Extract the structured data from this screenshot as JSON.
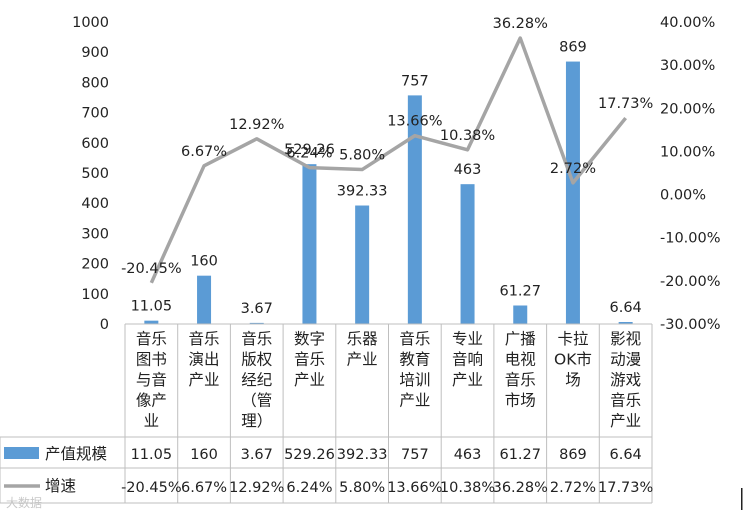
{
  "chart_data": {
    "type": "bar",
    "categories": [
      "音乐\n图书\n与音\n像产\n业",
      "音乐\n演出\n产业",
      "音乐\n版权\n经纪\n（管\n理）",
      "数字\n音乐\n产业",
      "乐器\n产业",
      "音乐\n教育\n培训\n产业",
      "专业\n音响\n产业",
      "广播\n电视\n音乐\n市场",
      "卡拉\nOK市\n场",
      "影视\n动漫\n游戏\n音乐\n产业"
    ],
    "series": [
      {
        "name": "产值规模",
        "kind": "bar",
        "axis": "left",
        "color": "#5b9bd5",
        "values": [
          11.05,
          160,
          3.67,
          529.26,
          392.33,
          757,
          463,
          61.27,
          869,
          6.64
        ],
        "labels": [
          "11.05",
          "160",
          "3.67",
          "529.26",
          "392.33",
          "757",
          "463",
          "61.27",
          "869",
          "6.64"
        ]
      },
      {
        "name": "增速",
        "kind": "line",
        "axis": "right",
        "color": "#a5a5a5",
        "values": [
          -20.45,
          6.67,
          12.92,
          6.24,
          5.8,
          13.66,
          10.38,
          36.28,
          2.72,
          17.73
        ],
        "labels": [
          "-20.45%",
          "6.67%",
          "12.92%",
          "6.24%",
          "5.80%",
          "13.66%",
          "10.38%",
          "36.28%",
          "2.72%",
          "17.73%"
        ]
      }
    ],
    "y_left": {
      "ylim": [
        0,
        1000
      ],
      "ticks": [
        "0",
        "100",
        "200",
        "300",
        "400",
        "500",
        "600",
        "700",
        "800",
        "900",
        "1000"
      ]
    },
    "y_right": {
      "ylim": [
        -30,
        40
      ],
      "ticks": [
        "-30.00%",
        "-20.00%",
        "-10.00%",
        "0.00%",
        "10.00%",
        "20.00%",
        "30.00%",
        "40.00%"
      ]
    },
    "data_table": true,
    "grid": false,
    "legend": "bottom-left (in data table)"
  },
  "watermark": "大数据"
}
